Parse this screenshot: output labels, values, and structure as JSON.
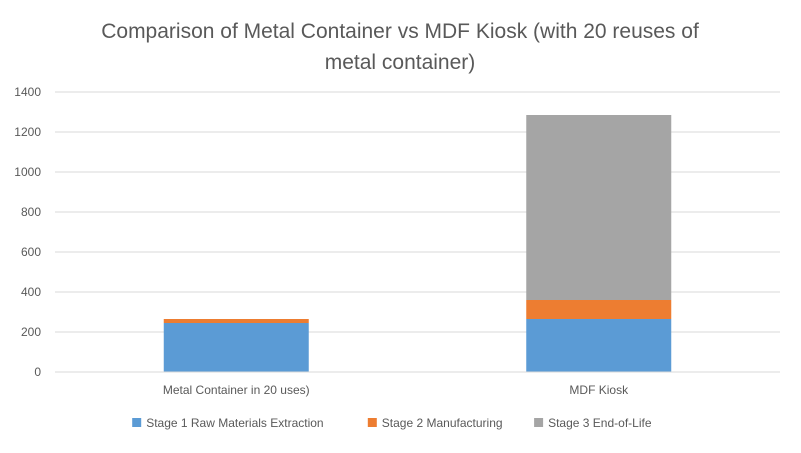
{
  "chart_data": {
    "type": "bar",
    "stacked": true,
    "title_lines": [
      "Comparison of Metal Container vs MDF Kiosk (with 20 reuses of",
      "metal container)"
    ],
    "categories": [
      "Metal Container in 20 uses)",
      "MDF Kiosk"
    ],
    "series": [
      {
        "name": "Stage 1 Raw Materials Extraction",
        "color": "#5B9BD5",
        "values": [
          245,
          265
        ]
      },
      {
        "name": "Stage 2 Manufacturing",
        "color": "#ED7D31",
        "values": [
          20,
          95
        ]
      },
      {
        "name": "Stage 3 End-of-Life",
        "color": "#A5A5A5",
        "values": [
          0,
          925
        ]
      }
    ],
    "ylim": [
      0,
      1400
    ],
    "yticks": [
      0,
      200,
      400,
      600,
      800,
      1000,
      1200,
      1400
    ],
    "grid": true,
    "legend_position": "bottom"
  }
}
